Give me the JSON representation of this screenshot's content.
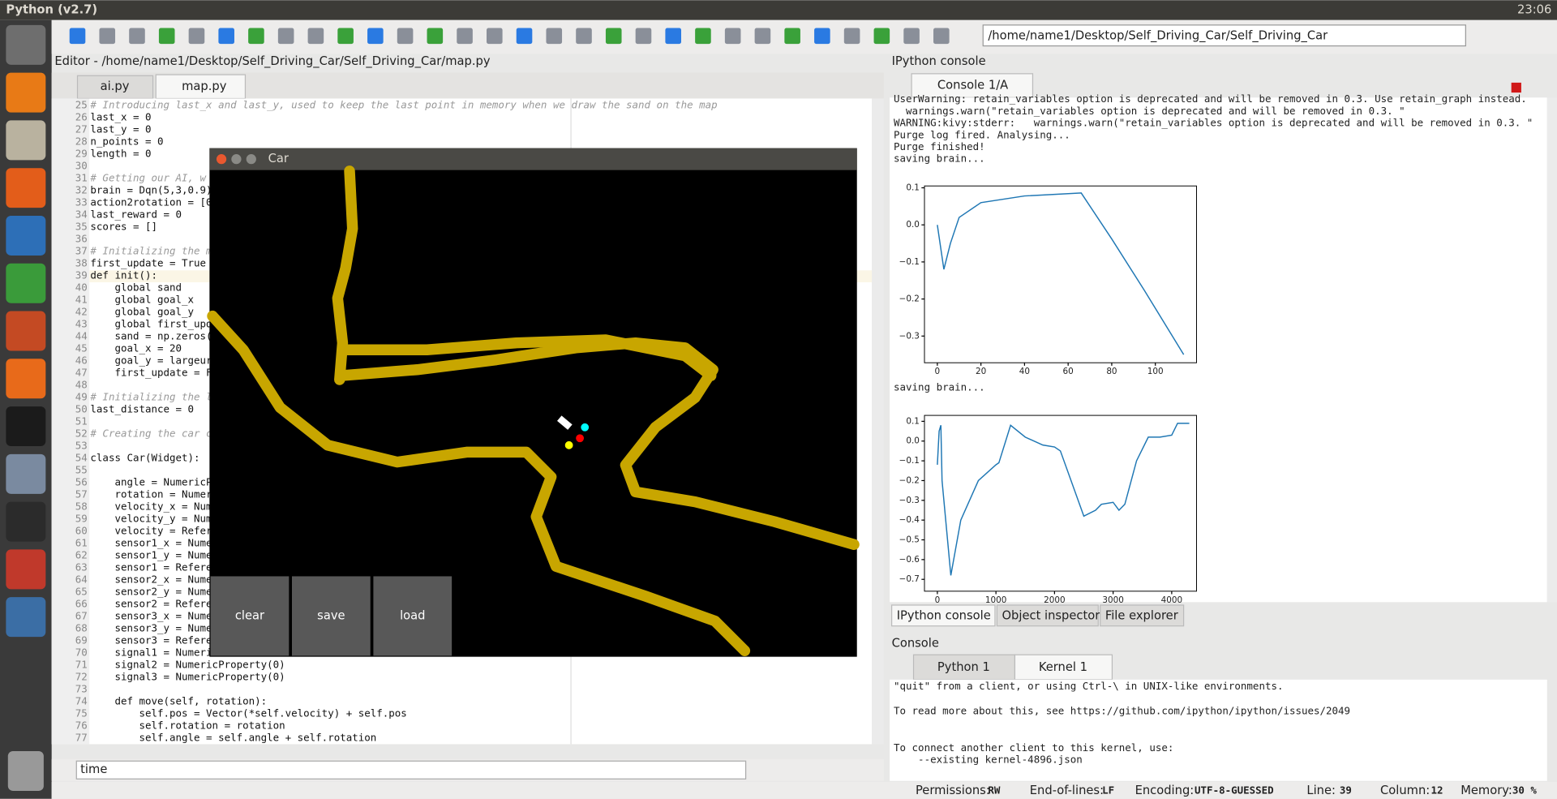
{
  "window_title": "Python (v2.7)",
  "clock": "23:06",
  "toolbar": {
    "path": "/home/name1/Desktop/Self_Driving_Car/Self_Driving_Car"
  },
  "editor": {
    "title": "Editor - /home/name1/Desktop/Self_Driving_Car/Self_Driving_Car/map.py",
    "tabs": [
      "ai.py",
      "map.py"
    ],
    "lines": [
      {
        "no": 25,
        "text": "# Introducing last_x and last_y, used to keep the last point in memory when we draw the sand on the map"
      },
      {
        "no": 26,
        "text": "last_x = 0"
      },
      {
        "no": 27,
        "text": "last_y = 0"
      },
      {
        "no": 28,
        "text": "n_points = 0"
      },
      {
        "no": 29,
        "text": "length = 0"
      },
      {
        "no": 30
      },
      {
        "no": 31,
        "text": "# Getting our AI, w"
      },
      {
        "no": 32,
        "text": "brain = Dqn(5,3,0.9)"
      },
      {
        "no": 33,
        "text": "action2rotation = [0"
      },
      {
        "no": 34,
        "text": "last_reward = 0"
      },
      {
        "no": 35,
        "text": "scores = []"
      },
      {
        "no": 36
      },
      {
        "no": 37,
        "text": "# Initializing the m"
      },
      {
        "no": 38,
        "text": "first_update = True"
      },
      {
        "no": 39,
        "text": "def init():"
      },
      {
        "no": 40,
        "text": "    global sand"
      },
      {
        "no": 41,
        "text": "    global goal_x"
      },
      {
        "no": 42,
        "text": "    global goal_y"
      },
      {
        "no": 43,
        "text": "    global first_upd"
      },
      {
        "no": 44,
        "text": "    sand = np.zeros("
      },
      {
        "no": 45,
        "text": "    goal_x = 20"
      },
      {
        "no": 46,
        "text": "    goal_y = largeur"
      },
      {
        "no": 47,
        "text": "    first_update = F"
      },
      {
        "no": 48
      },
      {
        "no": 49,
        "text": "# Initializing the l"
      },
      {
        "no": 50,
        "text": "last_distance = 0"
      },
      {
        "no": 51
      },
      {
        "no": 52,
        "text": "# Creating the car c"
      },
      {
        "no": 53
      },
      {
        "no": 54,
        "text": "class Car(Widget):"
      },
      {
        "no": 55
      },
      {
        "no": 56,
        "text": "    angle = NumericP"
      },
      {
        "no": 57,
        "text": "    rotation = Numer"
      },
      {
        "no": 58,
        "text": "    velocity_x = Num"
      },
      {
        "no": 59,
        "text": "    velocity_y = Num"
      },
      {
        "no": 60,
        "text": "    velocity = Refer"
      },
      {
        "no": 61,
        "text": "    sensor1_x = Nume"
      },
      {
        "no": 62,
        "text": "    sensor1_y = Nume"
      },
      {
        "no": 63,
        "text": "    sensor1 = Refere"
      },
      {
        "no": 64,
        "text": "    sensor2_x = Nume"
      },
      {
        "no": 65,
        "text": "    sensor2_y = Nume"
      },
      {
        "no": 66,
        "text": "    sensor2 = Refere"
      },
      {
        "no": 67,
        "text": "    sensor3_x = Nume"
      },
      {
        "no": 68,
        "text": "    sensor3_y = Nume"
      },
      {
        "no": 69,
        "text": "    sensor3 = Refere"
      },
      {
        "no": 70,
        "text": "    signal1 = NumericP"
      },
      {
        "no": 71,
        "text": "    signal2 = NumericProperty(0)"
      },
      {
        "no": 72,
        "text": "    signal3 = NumericProperty(0)"
      },
      {
        "no": 73
      },
      {
        "no": 74,
        "text": "    def move(self, rotation):"
      },
      {
        "no": 75,
        "text": "        self.pos = Vector(*self.velocity) + self.pos"
      },
      {
        "no": 76,
        "text": "        self.rotation = rotation"
      },
      {
        "no": 77,
        "text": "        self.angle = self.angle + self.rotation"
      }
    ],
    "find": "time"
  },
  "car_window": {
    "title": "Car",
    "buttons": [
      "clear",
      "save",
      "load"
    ]
  },
  "ipython": {
    "title": "IPython console",
    "tab": "Console 1/A",
    "output_top": [
      "UserWarning: retain_variables option is deprecated and will be removed in 0.3. Use retain_graph instead.",
      "  warnings.warn(\"retain_variables option is deprecated and will be removed in 0.3. \"",
      "WARNING:kivy:stderr:   warnings.warn(\"retain_variables option is deprecated and will be removed in 0.3. \"",
      "Purge log fired. Analysing...",
      "Purge finished!",
      "saving brain..."
    ],
    "output_mid": "saving brain...",
    "plots": [
      {
        "color": "#1f77b4",
        "x": [
          0,
          3,
          6,
          10,
          20,
          40,
          66,
          80,
          95,
          113
        ],
        "y": [
          0.0,
          -0.12,
          -0.05,
          0.02,
          0.06,
          0.078,
          0.086,
          -0.038,
          -0.177,
          -0.35
        ],
        "xlim": [
          -5.9,
          118.9
        ],
        "ylim": [
          -0.372,
          0.105
        ],
        "xticks": [
          0,
          20,
          40,
          60,
          80,
          100
        ],
        "yticks": [
          {
            "value": 0.1,
            "label": "0.1"
          },
          {
            "value": 0,
            "label": "0.0"
          },
          {
            "value": -0.1,
            "label": "−0.1"
          },
          {
            "value": -0.2,
            "label": "−0.2"
          },
          {
            "value": -0.3,
            "label": "−0.3"
          }
        ]
      },
      {
        "color": "#1f77b4",
        "x": [
          0,
          30,
          60,
          80,
          230,
          400,
          700,
          1000,
          1050,
          1250,
          1500,
          1800,
          2000,
          2100,
          2500,
          2700,
          2800,
          3000,
          3100,
          3200,
          3400,
          3600,
          3800,
          4000,
          4100,
          4300
        ],
        "y": [
          -0.12,
          0.05,
          0.08,
          -0.2,
          -0.68,
          -0.4,
          -0.2,
          -0.12,
          -0.11,
          0.08,
          0.02,
          -0.02,
          -0.03,
          -0.05,
          -0.38,
          -0.35,
          -0.32,
          -0.31,
          -0.35,
          -0.32,
          -0.1,
          0.02,
          0.02,
          0.03,
          0.09,
          0.09
        ],
        "xlim": [
          -220,
          4424
        ],
        "ylim": [
          -0.76,
          0.13
        ],
        "xticks": [
          0,
          1000,
          2000,
          3000,
          4000
        ],
        "yticks": [
          {
            "value": 0.1,
            "label": "0.1"
          },
          {
            "value": 0,
            "label": "0.0"
          },
          {
            "value": -0.1,
            "label": "−0.1"
          },
          {
            "value": -0.2,
            "label": "−0.2"
          },
          {
            "value": -0.3,
            "label": "−0.3"
          },
          {
            "value": -0.4,
            "label": "−0.4"
          },
          {
            "value": -0.5,
            "label": "−0.5"
          },
          {
            "value": -0.6,
            "label": "−0.6"
          },
          {
            "value": -0.7,
            "label": "−0.7"
          }
        ]
      }
    ],
    "pane_tabs": [
      "IPython console",
      "Object inspector",
      "File explorer"
    ]
  },
  "console": {
    "title": "Console",
    "tabs": [
      "Python 1",
      "Kernel 1"
    ],
    "output": [
      "\"quit\" from a client, or using Ctrl-\\ in UNIX-like environments.",
      "To read more about this, see https://github.com/ipython/ipython/issues/2049",
      "To connect another client to this kernel, use:",
      "    --existing kernel-4896.json"
    ]
  },
  "status": [
    {
      "label": "Permissions:",
      "value": "RW"
    },
    {
      "label": "End-of-lines:",
      "value": "LF"
    },
    {
      "label": "Encoding:",
      "value": "UTF-8-GUESSED"
    },
    {
      "label": "Line:",
      "value": "39"
    },
    {
      "label": "Column:",
      "value": "12"
    },
    {
      "label": "Memory:",
      "value": "30 %"
    }
  ]
}
